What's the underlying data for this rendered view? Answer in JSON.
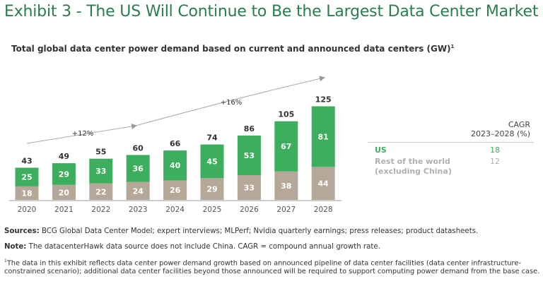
{
  "title": "Exhibit 3 - The US Will Continue to Be the Largest Data Center Market",
  "subtitle": "Total global data center power demand based on current and announced data centers (GW)",
  "subtitle_footnote_mark": "1",
  "chart_data": {
    "type": "bar",
    "stacked": true,
    "categories": [
      "2020",
      "2021",
      "2022",
      "2023",
      "2024",
      "2025",
      "2026",
      "2027",
      "2028"
    ],
    "series": [
      {
        "name": "Rest of the world (excluding China)",
        "color": "#b5a898",
        "values": [
          18,
          20,
          22,
          24,
          26,
          29,
          33,
          38,
          44
        ]
      },
      {
        "name": "US",
        "color": "#3dae5e",
        "values": [
          25,
          29,
          33,
          36,
          40,
          45,
          53,
          67,
          81
        ]
      }
    ],
    "totals": [
      43,
      49,
      55,
      60,
      66,
      74,
      86,
      105,
      125
    ],
    "annotations": [
      {
        "text": "+12%",
        "from": "2020",
        "to": "2023"
      },
      {
        "text": "+16%",
        "from": "2023",
        "to": "2028"
      }
    ],
    "ylim": [
      0,
      130
    ],
    "grid": false
  },
  "cagr_table": {
    "header_line1": "CAGR",
    "header_line2": "2023–2028 (%)",
    "rows": [
      {
        "label": "US",
        "value": "18",
        "color": "#3dae5e"
      },
      {
        "label_line1": "Rest of the world",
        "label_line2": "(excluding China)",
        "value": "12",
        "color": "#b0b0b0"
      }
    ]
  },
  "notes": {
    "sources_label": "Sources:",
    "sources_text": " BCG Global Data Center Model; expert interviews; MLPerf; Nvidia quarterly earnings; press releases; product datasheets.",
    "note_label": "Note:",
    "note_text": " The datacenterHawk data source does not include China. CAGR = compound annual growth rate.",
    "footnote_mark": "1",
    "footnote_text": "The data in this exhibit reflects data center power demand growth based on announced pipeline of data center facilities (data center infrastructure-constrained scenario); additional data center facilities beyond those announced will be required to support computing power demand from the base case."
  }
}
